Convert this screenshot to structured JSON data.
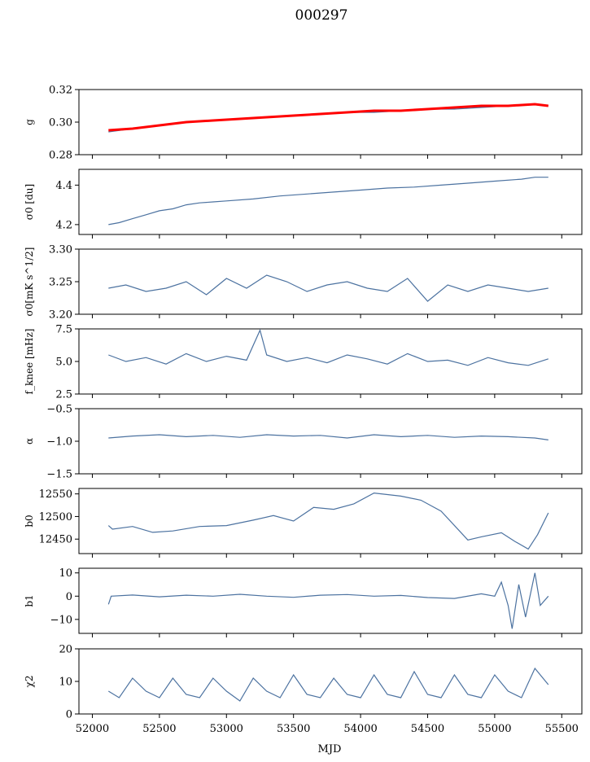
{
  "figure": {
    "title": "000297",
    "xlabel": "MJD"
  },
  "colors": {
    "series": "#4c72a0",
    "highlight": "#ff0000",
    "axes": "#000000",
    "background": "#ffffff"
  },
  "chart_data": [
    {
      "type": "line",
      "ylabel": "g",
      "xlim": [
        51900,
        55650
      ],
      "ylim": [
        0.28,
        0.32
      ],
      "yticks": [
        "0.28",
        "0.30",
        "0.32"
      ],
      "grid": false,
      "series": [
        {
          "x": [
            52120,
            52300,
            52500,
            52700,
            52900,
            53100,
            53300,
            53500,
            53700,
            53900,
            54100,
            54300,
            54500,
            54700,
            54900,
            55100,
            55300,
            55400
          ],
          "y": [
            0.294,
            0.296,
            0.298,
            0.3,
            0.301,
            0.302,
            0.303,
            0.304,
            0.305,
            0.306,
            0.306,
            0.307,
            0.308,
            0.308,
            0.309,
            0.31,
            0.311,
            0.31
          ]
        },
        {
          "x": [
            52120,
            52300,
            52500,
            52700,
            52900,
            53100,
            53300,
            53500,
            53700,
            53900,
            54100,
            54300,
            54500,
            54700,
            54900,
            55100,
            55300,
            55400
          ],
          "y": [
            0.295,
            0.296,
            0.298,
            0.3,
            0.301,
            0.302,
            0.303,
            0.304,
            0.305,
            0.306,
            0.307,
            0.307,
            0.308,
            0.309,
            0.31,
            0.31,
            0.311,
            0.31
          ]
        }
      ]
    },
    {
      "type": "line",
      "ylabel": "σ0 [du]",
      "xlim": [
        51900,
        55650
      ],
      "ylim": [
        4.15,
        4.48
      ],
      "yticks": [
        "4.2",
        "4.4"
      ],
      "grid": false,
      "series": [
        {
          "x": [
            52120,
            52200,
            52300,
            52400,
            52500,
            52600,
            52700,
            52800,
            52900,
            53000,
            53200,
            53400,
            53600,
            53800,
            54000,
            54200,
            54400,
            54600,
            54800,
            55000,
            55200,
            55300,
            55400
          ],
          "y": [
            4.2,
            4.21,
            4.23,
            4.25,
            4.27,
            4.28,
            4.3,
            4.31,
            4.315,
            4.32,
            4.33,
            4.345,
            4.355,
            4.365,
            4.375,
            4.385,
            4.39,
            4.4,
            4.41,
            4.42,
            4.43,
            4.44,
            4.44
          ]
        }
      ]
    },
    {
      "type": "line",
      "ylabel": "σ0[mK s^1/2]",
      "xlim": [
        51900,
        55650
      ],
      "ylim": [
        3.2,
        3.3
      ],
      "yticks": [
        "3.20",
        "3.25",
        "3.30"
      ],
      "grid": false,
      "series": [
        {
          "x": [
            52120,
            52250,
            52400,
            52550,
            52700,
            52850,
            53000,
            53150,
            53300,
            53450,
            53600,
            53750,
            53900,
            54050,
            54200,
            54350,
            54500,
            54650,
            54800,
            54950,
            55100,
            55250,
            55400
          ],
          "y": [
            3.24,
            3.245,
            3.235,
            3.24,
            3.25,
            3.23,
            3.255,
            3.24,
            3.26,
            3.25,
            3.235,
            3.245,
            3.25,
            3.24,
            3.235,
            3.255,
            3.22,
            3.245,
            3.235,
            3.245,
            3.24,
            3.235,
            3.24
          ]
        }
      ]
    },
    {
      "type": "line",
      "ylabel": "f_knee [mHz]",
      "xlim": [
        51900,
        55650
      ],
      "ylim": [
        2.5,
        7.5
      ],
      "yticks": [
        "2.5",
        "5.0",
        "7.5"
      ],
      "grid": false,
      "series": [
        {
          "x": [
            52120,
            52250,
            52400,
            52550,
            52700,
            52850,
            53000,
            53150,
            53250,
            53300,
            53450,
            53600,
            53750,
            53900,
            54050,
            54200,
            54350,
            54500,
            54650,
            54800,
            54950,
            55100,
            55250,
            55400
          ],
          "y": [
            5.5,
            5.0,
            5.3,
            4.8,
            5.6,
            5.0,
            5.4,
            5.1,
            7.4,
            5.5,
            5.0,
            5.3,
            4.9,
            5.5,
            5.2,
            4.8,
            5.6,
            5.0,
            5.1,
            4.7,
            5.3,
            4.9,
            4.7,
            5.2
          ]
        }
      ]
    },
    {
      "type": "line",
      "ylabel": "α",
      "xlim": [
        51900,
        55650
      ],
      "ylim": [
        -1.5,
        -0.5
      ],
      "yticks": [
        "−1.5",
        "−1.0",
        "−0.5"
      ],
      "grid": false,
      "series": [
        {
          "x": [
            52120,
            52300,
            52500,
            52700,
            52900,
            53100,
            53300,
            53500,
            53700,
            53900,
            54100,
            54300,
            54500,
            54700,
            54900,
            55100,
            55300,
            55400
          ],
          "y": [
            -0.95,
            -0.92,
            -0.9,
            -0.93,
            -0.91,
            -0.94,
            -0.9,
            -0.92,
            -0.91,
            -0.95,
            -0.9,
            -0.93,
            -0.91,
            -0.94,
            -0.92,
            -0.93,
            -0.95,
            -0.98
          ]
        }
      ]
    },
    {
      "type": "line",
      "ylabel": "b0",
      "xlim": [
        51900,
        55650
      ],
      "ylim": [
        12418,
        12562
      ],
      "yticks": [
        "12450",
        "12500",
        "12550"
      ],
      "grid": false,
      "series": [
        {
          "x": [
            52120,
            52150,
            52300,
            52450,
            52600,
            52800,
            53000,
            53200,
            53350,
            53500,
            53650,
            53800,
            53950,
            54100,
            54300,
            54450,
            54600,
            54800,
            54900,
            55050,
            55150,
            55250,
            55320,
            55400
          ],
          "y": [
            12480,
            12472,
            12478,
            12465,
            12468,
            12478,
            12480,
            12492,
            12502,
            12490,
            12520,
            12516,
            12528,
            12552,
            12545,
            12536,
            12512,
            12448,
            12455,
            12464,
            12445,
            12428,
            12460,
            12508
          ]
        }
      ]
    },
    {
      "type": "line",
      "ylabel": "b1",
      "xlim": [
        51900,
        55650
      ],
      "ylim": [
        -16,
        12
      ],
      "yticks": [
        "−10",
        "0",
        "10"
      ],
      "grid": false,
      "series": [
        {
          "x": [
            52120,
            52140,
            52300,
            52500,
            52700,
            52900,
            53100,
            53300,
            53500,
            53700,
            53900,
            54100,
            54300,
            54500,
            54700,
            54900,
            55000,
            55050,
            55100,
            55130,
            55180,
            55230,
            55300,
            55340,
            55400
          ],
          "y": [
            -3.5,
            0.0,
            0.5,
            -0.3,
            0.4,
            0.0,
            0.8,
            0.0,
            -0.5,
            0.4,
            0.7,
            0.0,
            0.3,
            -0.6,
            -1.0,
            1.0,
            0.0,
            6.0,
            -4.0,
            -14.0,
            5.0,
            -9.0,
            10.0,
            -4.0,
            0.0
          ]
        }
      ]
    },
    {
      "type": "line",
      "ylabel": "χ2",
      "xlim": [
        51900,
        55650
      ],
      "ylim": [
        0,
        20
      ],
      "yticks": [
        "0",
        "10",
        "20"
      ],
      "grid": false,
      "series": [
        {
          "x": [
            52120,
            52200,
            52300,
            52400,
            52500,
            52600,
            52700,
            52800,
            52900,
            53000,
            53100,
            53200,
            53300,
            53400,
            53500,
            53600,
            53700,
            53800,
            53900,
            54000,
            54100,
            54200,
            54300,
            54400,
            54500,
            54600,
            54700,
            54800,
            54900,
            55000,
            55100,
            55200,
            55300,
            55400
          ],
          "y": [
            7,
            5,
            11,
            7,
            5,
            11,
            6,
            5,
            11,
            7,
            4,
            11,
            7,
            5,
            12,
            6,
            5,
            11,
            6,
            5,
            12,
            6,
            5,
            13,
            6,
            5,
            12,
            6,
            5,
            12,
            7,
            5,
            14,
            9
          ]
        }
      ]
    }
  ]
}
